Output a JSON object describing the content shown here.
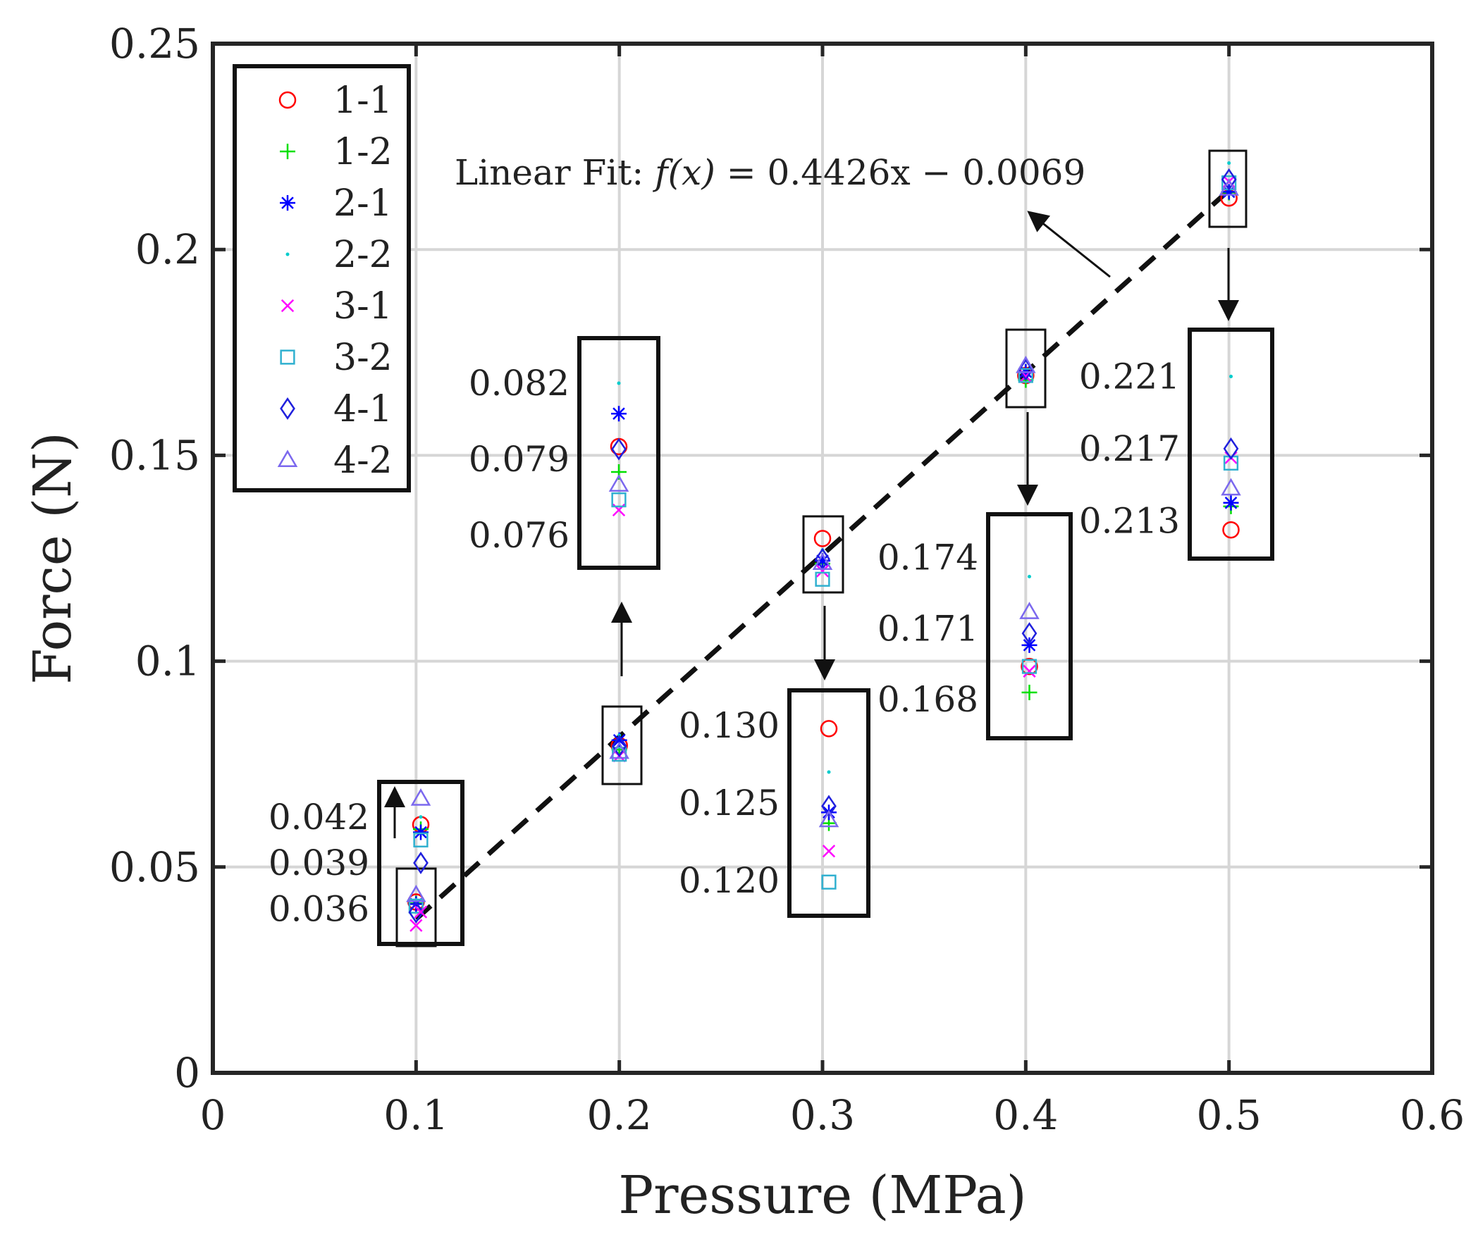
{
  "chart_data": {
    "type": "scatter",
    "title": "",
    "xlabel": "Pressure (MPa)",
    "ylabel": "Force (N)",
    "xlim": [
      0,
      0.6
    ],
    "ylim": [
      0,
      0.25
    ],
    "xticks": [
      0,
      0.1,
      0.2,
      0.3,
      0.4,
      0.5,
      0.6
    ],
    "xtick_labels": [
      "0",
      "0.1",
      "0.2",
      "0.3",
      "0.4",
      "0.5",
      "0.6"
    ],
    "yticks": [
      0,
      0.05,
      0.1,
      0.15,
      0.2,
      0.25
    ],
    "ytick_labels": [
      "0",
      "0.05",
      "0.1",
      "0.15",
      "0.2",
      "0.25"
    ],
    "grid": true,
    "legend_position": "top-left",
    "x": [
      0.1,
      0.2,
      0.3,
      0.4,
      0.5
    ],
    "series": [
      {
        "name": "1-1",
        "marker": "circle",
        "color": "#ff0000",
        "values": [
          0.0415,
          0.0795,
          0.1298,
          0.1694,
          0.2125
        ]
      },
      {
        "name": "1-2",
        "marker": "plus",
        "color": "#00e000",
        "values": [
          0.0412,
          0.0785,
          0.1237,
          0.1683,
          0.2138
        ]
      },
      {
        "name": "2-1",
        "marker": "asterisk",
        "color": "#0000ff",
        "values": [
          0.041,
          0.0808,
          0.1244,
          0.1703,
          0.214
        ]
      },
      {
        "name": "2-2",
        "marker": "dot",
        "color": "#00cccc",
        "values": [
          0.042,
          0.082,
          0.127,
          0.1732,
          0.221
        ]
      },
      {
        "name": "3-1",
        "marker": "x",
        "color": "#ff00ff",
        "values": [
          0.0358,
          0.077,
          0.1219,
          0.1692,
          0.2165
        ]
      },
      {
        "name": "3-2",
        "marker": "square",
        "color": "#30b0d0",
        "values": [
          0.0405,
          0.0774,
          0.1199,
          0.1694,
          0.2162
        ]
      },
      {
        "name": "4-1",
        "marker": "diamond",
        "color": "#2020dd",
        "values": [
          0.039,
          0.0794,
          0.1248,
          0.1708,
          0.217
        ]
      },
      {
        "name": "4-2",
        "marker": "triangle",
        "color": "#7b68ee",
        "values": [
          0.0432,
          0.078,
          0.1239,
          0.1717,
          0.2148
        ]
      }
    ],
    "fit": {
      "label_prefix": "Linear Fit: ",
      "label_fx": "f(x)",
      "label_rhs": " = 0.4426x − 0.0069",
      "slope": 0.4426,
      "intercept": -0.0069,
      "x_range": [
        0.1,
        0.5
      ]
    },
    "insets": [
      {
        "x": 0.1,
        "ylim": [
          0.035,
          0.043
        ],
        "ticks": [
          "0.042",
          "0.039",
          "0.036"
        ],
        "tick_values": [
          0.042,
          0.039,
          0.036
        ],
        "label_side": "left",
        "arrow": "up"
      },
      {
        "x": 0.2,
        "ylim": [
          0.0755,
          0.083
        ],
        "ticks": [
          "0.082",
          "0.079",
          "0.076"
        ],
        "tick_values": [
          0.082,
          0.079,
          0.076
        ],
        "label_side": "left",
        "arrow": "up"
      },
      {
        "x": 0.3,
        "ylim": [
          0.119,
          0.131
        ],
        "ticks": [
          "0.130",
          "0.125",
          "0.120"
        ],
        "tick_values": [
          0.13,
          0.125,
          0.12
        ],
        "label_side": "left",
        "arrow": "down"
      },
      {
        "x": 0.4,
        "ylim": [
          0.1672,
          0.175
        ],
        "ticks": [
          "0.174",
          "0.171",
          "0.168"
        ],
        "tick_values": [
          0.174,
          0.171,
          0.168
        ],
        "label_side": "left",
        "arrow": "down"
      },
      {
        "x": 0.5,
        "ylim": [
          0.212,
          0.2225
        ],
        "ticks": [
          "0.221",
          "0.217",
          "0.213"
        ],
        "tick_values": [
          0.221,
          0.217,
          0.213
        ],
        "label_side": "left",
        "arrow": "down"
      }
    ]
  }
}
